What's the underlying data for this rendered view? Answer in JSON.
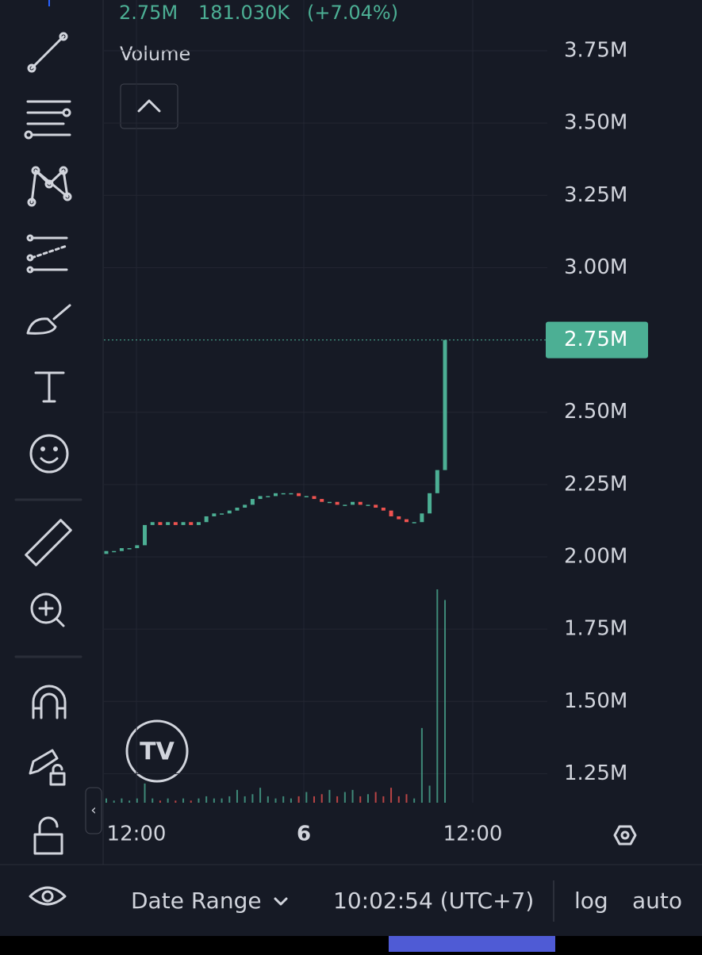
{
  "legend": {
    "values": [
      "2.75M",
      "181.030K",
      "(+7.04%)"
    ],
    "indicator": "Volume"
  },
  "chart_data": {
    "type": "candlestick",
    "open": [
      2010000,
      2020000,
      2020000,
      2030000,
      2030000,
      2040000,
      2110000,
      2120000,
      2110000,
      2120000,
      2110000,
      2120000,
      2110000,
      2120000,
      2140000,
      2150000,
      2150000,
      2160000,
      2170000,
      2180000,
      2200000,
      2210000,
      2210000,
      2220000,
      2220000,
      2220000,
      2210000,
      2210000,
      2200000,
      2190000,
      2190000,
      2180000,
      2180000,
      2190000,
      2180000,
      2180000,
      2170000,
      2160000,
      2140000,
      2130000,
      2120000,
      2120000,
      2150000,
      2220000,
      2300000
    ],
    "close": [
      2020000,
      2020000,
      2030000,
      2030000,
      2040000,
      2110000,
      2120000,
      2110000,
      2120000,
      2110000,
      2120000,
      2110000,
      2120000,
      2140000,
      2150000,
      2150000,
      2160000,
      2170000,
      2180000,
      2200000,
      2210000,
      2210000,
      2220000,
      2220000,
      2220000,
      2210000,
      2210000,
      2200000,
      2190000,
      2190000,
      2180000,
      2180000,
      2190000,
      2180000,
      2180000,
      2170000,
      2160000,
      2140000,
      2130000,
      2120000,
      2120000,
      2150000,
      2220000,
      2300000,
      2750000
    ],
    "volume": [
      2,
      1,
      2,
      1,
      2,
      9,
      2,
      1,
      2,
      1,
      2,
      1,
      2,
      3,
      2,
      2,
      3,
      6,
      3,
      4,
      7,
      3,
      2,
      3,
      2,
      3,
      5,
      3,
      4,
      6,
      3,
      5,
      6,
      3,
      4,
      5,
      3,
      7,
      3,
      4,
      2,
      35,
      8,
      100,
      95
    ],
    "up_color": "#4caf94",
    "down_color": "#ef5350",
    "ylim": [
      1150000,
      3850000
    ],
    "yticks": [
      {
        "value": 3750000,
        "label": "3.75M"
      },
      {
        "value": 3500000,
        "label": "3.50M"
      },
      {
        "value": 3250000,
        "label": "3.25M"
      },
      {
        "value": 3000000,
        "label": "3.00M"
      },
      {
        "value": 2500000,
        "label": "2.50M"
      },
      {
        "value": 2250000,
        "label": "2.25M"
      },
      {
        "value": 2000000,
        "label": "2.00M"
      },
      {
        "value": 1750000,
        "label": "1.75M"
      },
      {
        "value": 1500000,
        "label": "1.50M"
      },
      {
        "value": 1250000,
        "label": "1.25M"
      }
    ],
    "last_price": {
      "value": 2750000,
      "label": "2.75M"
    },
    "time_labels": [
      "12:00",
      "6",
      "12:00"
    ],
    "grid": true
  },
  "bottom_bar": {
    "date_range": "Date Range",
    "clock": "10:02:54 (UTC+7)",
    "log": "log",
    "auto": "auto"
  }
}
